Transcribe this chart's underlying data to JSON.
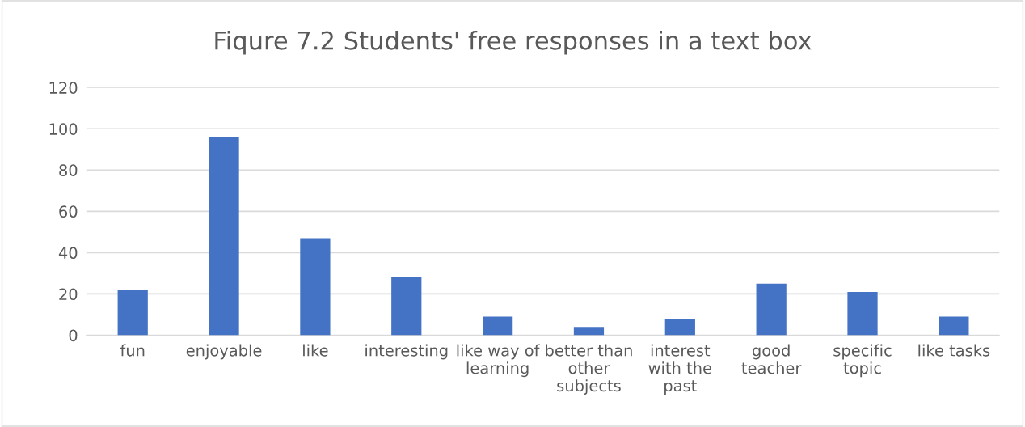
{
  "chart_data": {
    "type": "bar",
    "title": "Fiqure 7.2 Students' free responses in a text box",
    "categories": [
      "fun",
      "enjoyable",
      "like",
      "interesting",
      "like way of learning",
      "better than other subjects",
      "interest with the past",
      "good teacher",
      "specific topic",
      "like tasks"
    ],
    "values": [
      22,
      96,
      47,
      28,
      9,
      4,
      8,
      25,
      21,
      9
    ],
    "color": "#4472c4",
    "ylim": [
      0,
      120
    ],
    "yticks": [
      0,
      20,
      40,
      60,
      80,
      100,
      120
    ],
    "grid": "y",
    "legend": false
  }
}
